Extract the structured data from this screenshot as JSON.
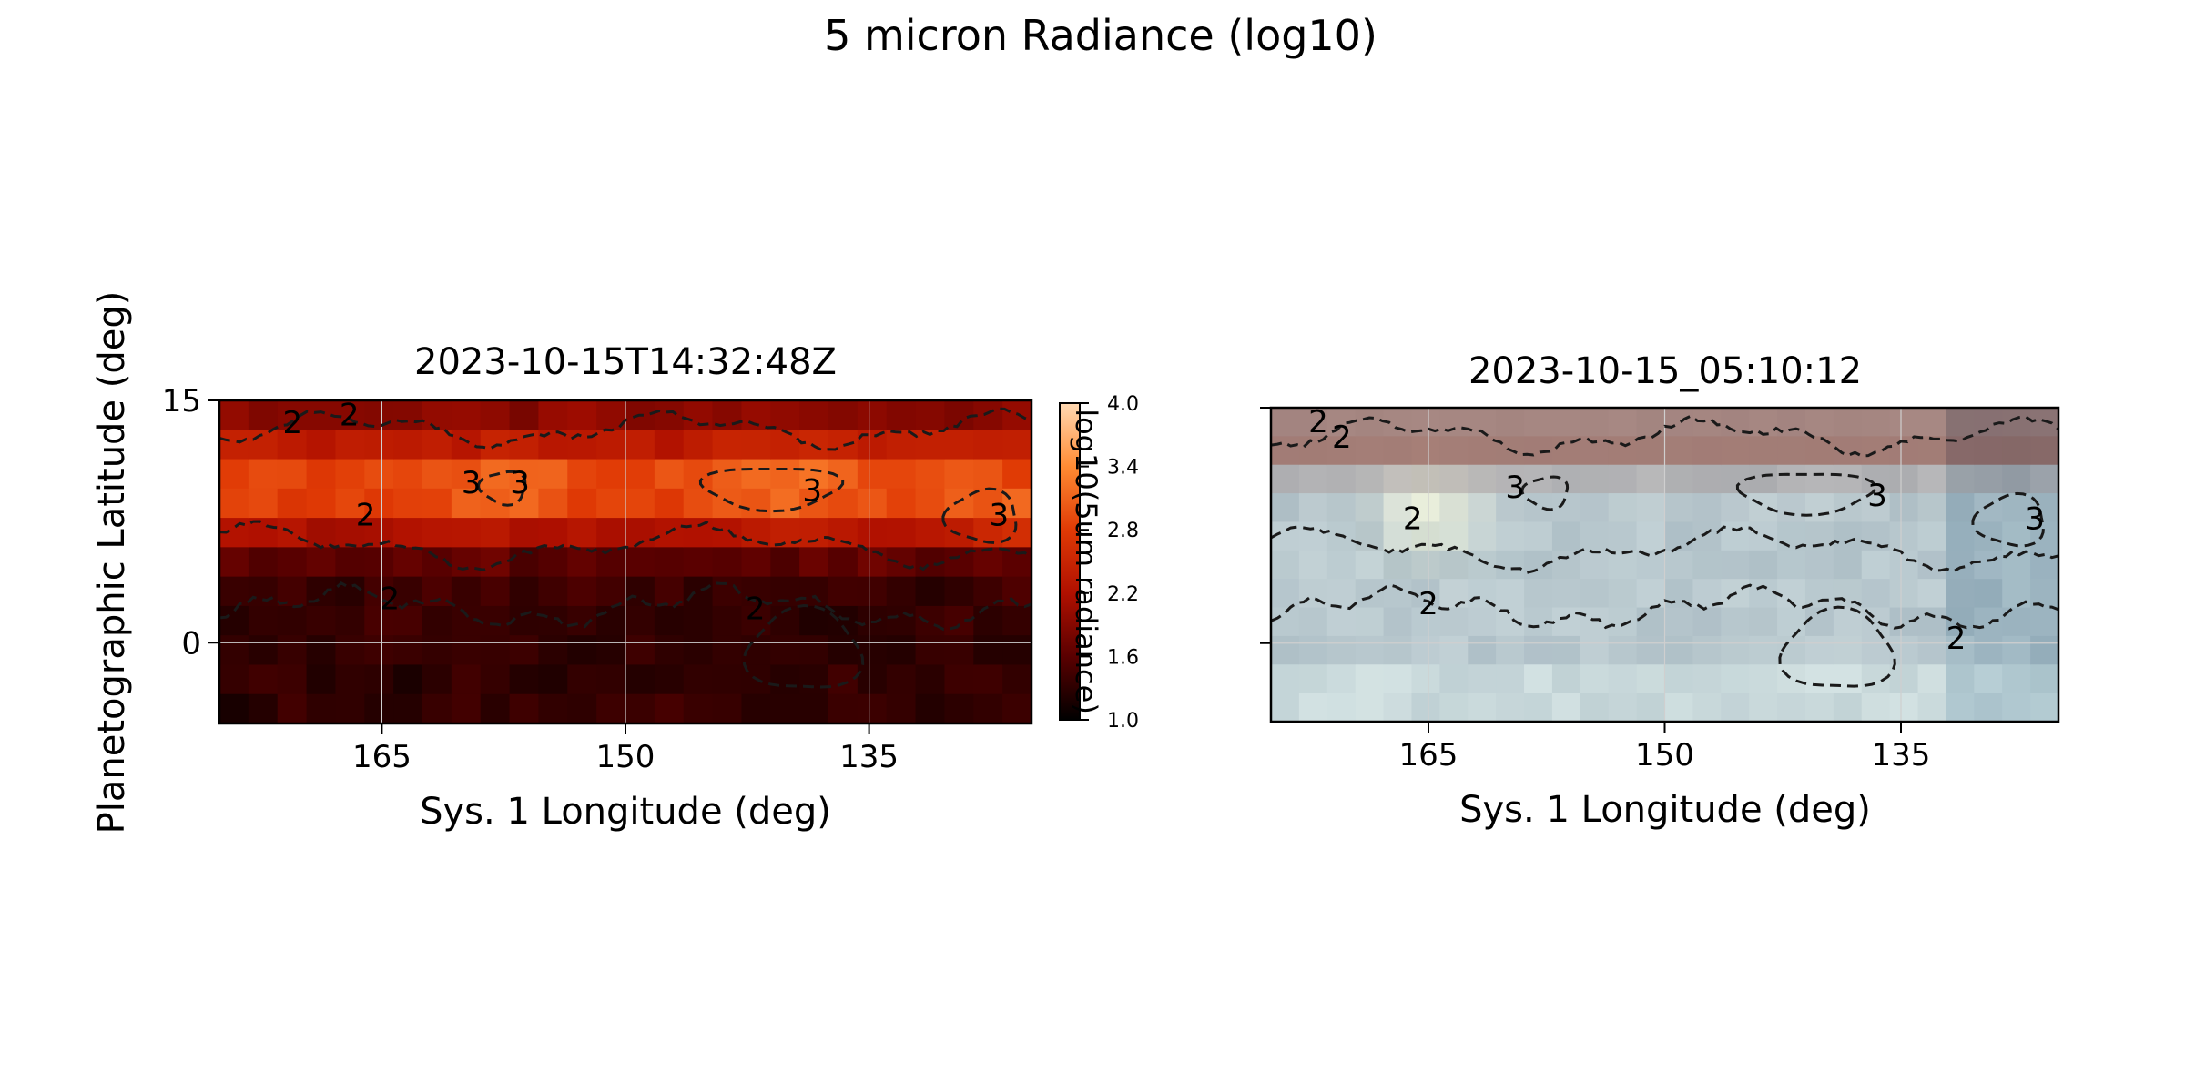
{
  "chart_data": {
    "type": "heatmap",
    "suptitle": "5 micron Radiance (log10)",
    "grid": true,
    "colormap": [
      "#000000",
      "#5a0000",
      "#b01000",
      "#e03a05",
      "#ff8b33",
      "#ffd9b3"
    ],
    "contour_style": "dashed",
    "contour_color": "#1a1a1a",
    "contour_levels": [
      2,
      3
    ],
    "x_count": 28,
    "y_count": 11,
    "panels": [
      {
        "title": "2023-10-15T14:32:48Z",
        "xlabel": "Sys. 1 Longitude (deg)",
        "ylabel": "Planetographic Latitude (deg)",
        "xlim": [
          175,
          125
        ],
        "ylim": [
          -5,
          15
        ],
        "xticks": [
          165,
          150,
          135
        ],
        "yticks": [
          0,
          15
        ],
        "render": "radiance",
        "colorbar": {
          "label": "log10(5um radiance)",
          "range": [
            1.0,
            4.0
          ],
          "ticks": [
            "4.0",
            "3.4",
            "2.8",
            "2.2",
            "1.6",
            "1.0"
          ]
        },
        "contour_labels": [
          {
            "text": "2",
            "x": 170.5,
            "y": 13.5
          },
          {
            "text": "2",
            "x": 167.0,
            "y": 14.0
          },
          {
            "text": "2",
            "x": 166.0,
            "y": 7.8
          },
          {
            "text": "3",
            "x": 159.5,
            "y": 9.8
          },
          {
            "text": "3",
            "x": 156.5,
            "y": 9.8
          },
          {
            "text": "3",
            "x": 138.5,
            "y": 9.3
          },
          {
            "text": "3",
            "x": 127.0,
            "y": 7.8
          },
          {
            "text": "2",
            "x": 164.5,
            "y": 2.6
          },
          {
            "text": "2",
            "x": 142.0,
            "y": 2.0
          }
        ]
      },
      {
        "title": "2023-10-15_05:10:12",
        "xlabel": "Sys. 1 Longitude (deg)",
        "xlim": [
          175,
          125
        ],
        "ylim": [
          -5,
          15
        ],
        "xticks": [
          165,
          150,
          135
        ],
        "yticks": [
          0,
          15
        ],
        "render": "visible",
        "contour_labels": [
          {
            "text": "2",
            "x": 172.0,
            "y": 14.0
          },
          {
            "text": "2",
            "x": 170.5,
            "y": 13.0
          },
          {
            "text": "2",
            "x": 166.0,
            "y": 7.8
          },
          {
            "text": "3",
            "x": 159.5,
            "y": 9.8
          },
          {
            "text": "3",
            "x": 136.5,
            "y": 9.3
          },
          {
            "text": "3",
            "x": 126.5,
            "y": 7.8
          },
          {
            "text": "2",
            "x": 165.0,
            "y": 2.4
          },
          {
            "text": "2",
            "x": 131.5,
            "y": 0.2
          }
        ]
      }
    ]
  }
}
